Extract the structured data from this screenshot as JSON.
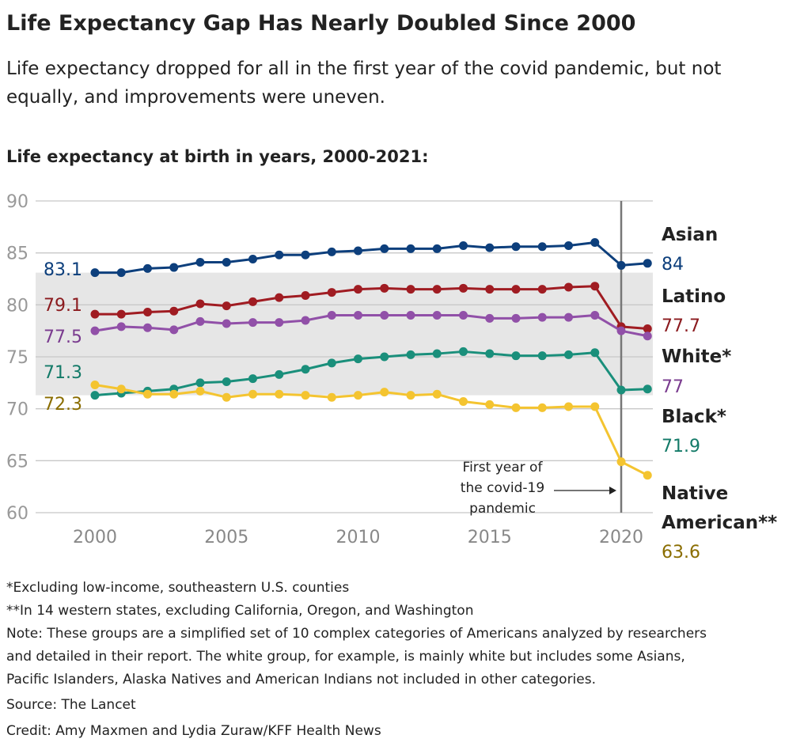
{
  "title": "Life Expectancy Gap Has Nearly Doubled Since 2000",
  "subtitle": [
    "Life expectancy dropped for all in the first year of the covid pandemic, but not",
    "equally, and improvements were uneven."
  ],
  "chart_data": {
    "type": "line",
    "title": "Life expectancy at birth in years, 2000-2021:",
    "x": [
      2000,
      2001,
      2002,
      2003,
      2004,
      2005,
      2006,
      2007,
      2008,
      2009,
      2010,
      2011,
      2012,
      2013,
      2014,
      2015,
      2016,
      2017,
      2018,
      2019,
      2020,
      2021
    ],
    "xticks": [
      "2000",
      "2005",
      "2010",
      "2015",
      "2020"
    ],
    "yticks": [
      "60",
      "65",
      "70",
      "75",
      "80",
      "85",
      "90"
    ],
    "ylim": [
      60,
      90
    ],
    "grid": true,
    "shaded_band": [
      71.3,
      83.1
    ],
    "series": [
      {
        "name": "Asian",
        "color": "#0d3f7c",
        "label_color": "#0d3f7c",
        "start_label": "83.1",
        "end_label": "84",
        "values": [
          83.1,
          83.1,
          83.5,
          83.6,
          84.1,
          84.1,
          84.4,
          84.8,
          84.8,
          85.1,
          85.2,
          85.4,
          85.4,
          85.4,
          85.7,
          85.5,
          85.6,
          85.6,
          85.7,
          86.0,
          83.8,
          84.0
        ]
      },
      {
        "name": "Latino",
        "color": "#a01c22",
        "label_color": "#8b1a1e",
        "start_label": "79.1",
        "end_label": "77.7",
        "values": [
          79.1,
          79.1,
          79.3,
          79.4,
          80.1,
          79.9,
          80.3,
          80.7,
          80.9,
          81.2,
          81.5,
          81.6,
          81.5,
          81.5,
          81.6,
          81.5,
          81.5,
          81.5,
          81.7,
          81.8,
          77.9,
          77.7
        ]
      },
      {
        "name": "White*",
        "color": "#9150a8",
        "label_color": "#7a3b8f",
        "start_label": "77.5",
        "end_label": "77",
        "values": [
          77.5,
          77.9,
          77.8,
          77.6,
          78.4,
          78.2,
          78.3,
          78.3,
          78.5,
          79.0,
          79.0,
          79.0,
          79.0,
          79.0,
          79.0,
          78.7,
          78.7,
          78.8,
          78.8,
          79.0,
          77.5,
          77.0
        ]
      },
      {
        "name": "Black*",
        "color": "#1a8f7b",
        "label_color": "#137a68",
        "start_label": "71.3",
        "end_label": "71.9",
        "values": [
          71.3,
          71.5,
          71.7,
          71.9,
          72.5,
          72.6,
          72.9,
          73.3,
          73.8,
          74.4,
          74.8,
          75.0,
          75.2,
          75.3,
          75.5,
          75.3,
          75.1,
          75.1,
          75.2,
          75.4,
          71.8,
          71.9
        ]
      },
      {
        "name": "Native American**",
        "color": "#f4c430",
        "label_color": "#8a6d00",
        "start_label": "72.3",
        "end_label": "63.6",
        "values": [
          72.3,
          71.9,
          71.4,
          71.4,
          71.7,
          71.1,
          71.4,
          71.4,
          71.3,
          71.1,
          71.3,
          71.6,
          71.3,
          71.4,
          70.7,
          70.4,
          70.1,
          70.1,
          70.2,
          70.2,
          64.9,
          63.6
        ]
      }
    ],
    "annotation": {
      "x": 2020,
      "lines": [
        "First year of",
        "the covid-19",
        "pandemic"
      ]
    }
  },
  "footnotes": [
    "*Excluding low-income, southeastern U.S. counties",
    "**In 14 western states, excluding California, Oregon, and Washington",
    "Note: These groups are a simplified set of 10 complex categories of Americans analyzed by researchers",
    "and detailed in their report. The white group, for example, is mainly white but includes some Asians,",
    "Pacific Islanders, Alaska Natives and American Indians not included in other categories.",
    "Source: The Lancet",
    "Credit: Amy Maxmen and Lydia Zuraw/KFF Health News"
  ]
}
